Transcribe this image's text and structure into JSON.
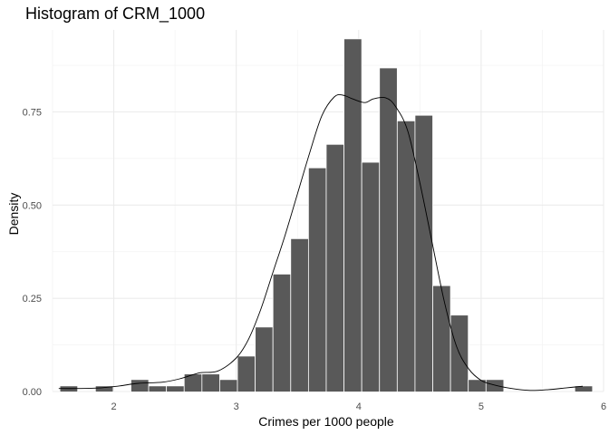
{
  "chart_data": {
    "type": "histogram",
    "title": "Histogram of CRM_1000",
    "xlabel": "Crimes per 1000 people",
    "ylabel": "Density",
    "xlim": [
      1.5,
      6.0
    ],
    "ylim": [
      0,
      0.97
    ],
    "x_ticks": [
      "2",
      "3",
      "4",
      "5",
      "6"
    ],
    "y_ticks": [
      "0.00",
      "0.25",
      "0.50",
      "0.75"
    ],
    "bin_width": 0.145,
    "bar_color": "#595959",
    "grid": true,
    "bins": [
      {
        "x0": 1.56,
        "density": 0.015
      },
      {
        "x0": 1.705,
        "density": 0.0
      },
      {
        "x0": 1.85,
        "density": 0.015
      },
      {
        "x0": 1.995,
        "density": 0.0
      },
      {
        "x0": 2.14,
        "density": 0.032
      },
      {
        "x0": 2.285,
        "density": 0.015
      },
      {
        "x0": 2.43,
        "density": 0.015
      },
      {
        "x0": 2.575,
        "density": 0.047
      },
      {
        "x0": 2.72,
        "density": 0.047
      },
      {
        "x0": 2.865,
        "density": 0.032
      },
      {
        "x0": 3.01,
        "density": 0.095
      },
      {
        "x0": 3.155,
        "density": 0.173
      },
      {
        "x0": 3.3,
        "density": 0.315
      },
      {
        "x0": 3.445,
        "density": 0.41
      },
      {
        "x0": 3.59,
        "density": 0.6
      },
      {
        "x0": 3.735,
        "density": 0.663
      },
      {
        "x0": 3.88,
        "density": 0.946
      },
      {
        "x0": 4.025,
        "density": 0.615
      },
      {
        "x0": 4.17,
        "density": 0.868
      },
      {
        "x0": 4.315,
        "density": 0.726
      },
      {
        "x0": 4.46,
        "density": 0.741
      },
      {
        "x0": 4.605,
        "density": 0.284
      },
      {
        "x0": 4.75,
        "density": 0.205
      },
      {
        "x0": 4.895,
        "density": 0.032
      },
      {
        "x0": 5.04,
        "density": 0.032
      },
      {
        "x0": 5.185,
        "density": 0.0
      },
      {
        "x0": 5.33,
        "density": 0.0
      },
      {
        "x0": 5.475,
        "density": 0.0
      },
      {
        "x0": 5.62,
        "density": 0.0
      },
      {
        "x0": 5.765,
        "density": 0.015
      }
    ],
    "density_curve": [
      [
        1.55,
        0.008
      ],
      [
        1.7,
        0.008
      ],
      [
        1.9,
        0.01
      ],
      [
        2.05,
        0.015
      ],
      [
        2.2,
        0.022
      ],
      [
        2.4,
        0.025
      ],
      [
        2.55,
        0.035
      ],
      [
        2.7,
        0.05
      ],
      [
        2.85,
        0.055
      ],
      [
        3.0,
        0.09
      ],
      [
        3.1,
        0.14
      ],
      [
        3.2,
        0.22
      ],
      [
        3.3,
        0.32
      ],
      [
        3.4,
        0.42
      ],
      [
        3.5,
        0.53
      ],
      [
        3.6,
        0.64
      ],
      [
        3.7,
        0.74
      ],
      [
        3.8,
        0.79
      ],
      [
        3.87,
        0.795
      ],
      [
        3.95,
        0.785
      ],
      [
        4.05,
        0.775
      ],
      [
        4.12,
        0.785
      ],
      [
        4.22,
        0.788
      ],
      [
        4.3,
        0.765
      ],
      [
        4.4,
        0.7
      ],
      [
        4.5,
        0.56
      ],
      [
        4.6,
        0.4
      ],
      [
        4.7,
        0.24
      ],
      [
        4.8,
        0.12
      ],
      [
        4.9,
        0.06
      ],
      [
        5.0,
        0.03
      ],
      [
        5.1,
        0.018
      ],
      [
        5.25,
        0.008
      ],
      [
        5.4,
        0.003
      ],
      [
        5.55,
        0.005
      ],
      [
        5.7,
        0.01
      ],
      [
        5.83,
        0.014
      ]
    ]
  }
}
